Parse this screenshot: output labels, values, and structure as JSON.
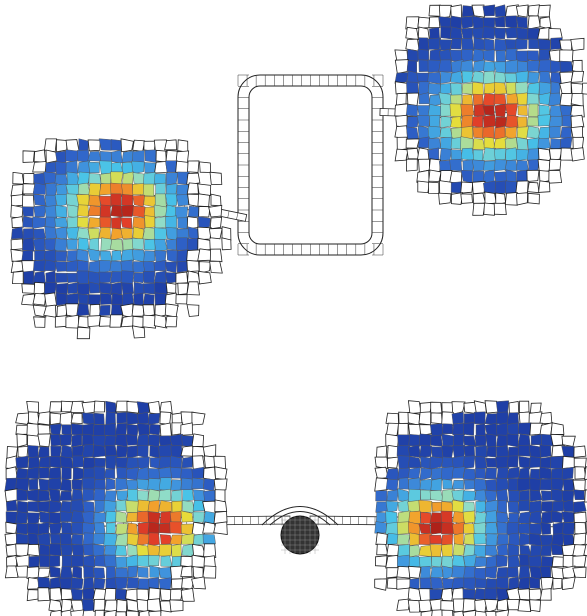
{
  "figure": {
    "colormap": {
      "name": "jet",
      "stops": [
        "#1f3fa6",
        "#2f62c8",
        "#3f8fdc",
        "#47c2e8",
        "#8fdcc8",
        "#e6dd3a",
        "#f2a12c",
        "#e4402a",
        "#9c1714"
      ]
    },
    "mesh_line_color": "#555555",
    "outline_fill": "#ffffff",
    "panels": [
      {
        "name": "top-panel",
        "domains": [
          {
            "name": "left-domain",
            "colored": true
          },
          {
            "name": "right-domain",
            "colored": true
          },
          {
            "name": "square-loop",
            "colored": false
          }
        ]
      },
      {
        "name": "bottom-panel",
        "domains": [
          {
            "name": "left-domain",
            "colored": true
          },
          {
            "name": "right-domain",
            "colored": true
          },
          {
            "name": "central-disk",
            "colored": false
          }
        ]
      }
    ]
  }
}
